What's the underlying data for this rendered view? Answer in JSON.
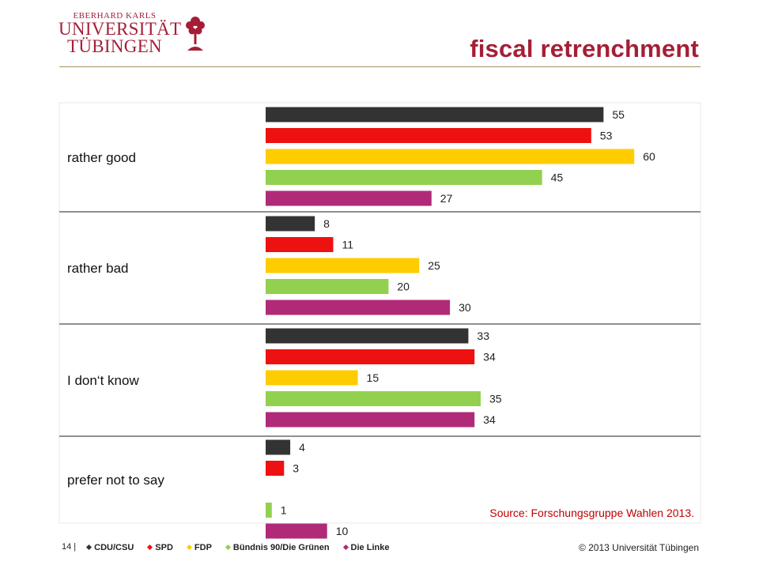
{
  "header": {
    "logo_line1": "EBERHARD KARLS",
    "logo_line2": "UNIVERSITÄT",
    "logo_line3": "TÜBINGEN",
    "slide_title": "fiscal retrenchment"
  },
  "chart_data": {
    "type": "bar",
    "orientation": "horizontal",
    "title": "fiscal retrenchment",
    "categories": [
      "rather good",
      "rather bad",
      "I don‘t know",
      "prefer not to say"
    ],
    "series": [
      {
        "name": "CDU/CSU",
        "color": "#333333",
        "values": [
          55,
          8,
          33,
          4
        ]
      },
      {
        "name": "SPD",
        "color": "#ee1111",
        "values": [
          53,
          11,
          34,
          3
        ]
      },
      {
        "name": "FDP",
        "color": "#ffcc00",
        "values": [
          60,
          25,
          15,
          null
        ]
      },
      {
        "name": "Bündnis 90/Die Grünen",
        "color": "#92d050",
        "values": [
          45,
          20,
          35,
          1
        ]
      },
      {
        "name": "Die Linke",
        "color": "#b02a78",
        "values": [
          27,
          30,
          34,
          10
        ]
      }
    ],
    "xlim": [
      0,
      70
    ],
    "grid": false,
    "legend_position": "bottom"
  },
  "source": "Source: Forschungsgruppe Wahlen 2013.",
  "footer": {
    "page_number": "14 |",
    "copyright": "© 2013 Universität Tübingen"
  }
}
